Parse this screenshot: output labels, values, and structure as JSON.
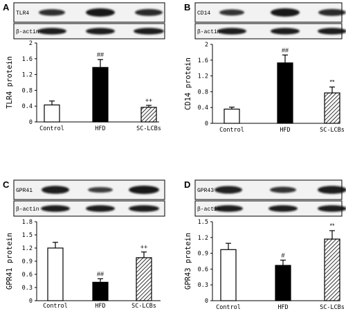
{
  "chart_data": [
    {
      "type": "bar",
      "panel": "A",
      "blot_labels": [
        "TLR4",
        "β-actin"
      ],
      "ylabel": "TLR4 protein",
      "yticks": [
        "0",
        "0.4",
        "0.8",
        "1.2",
        "1.6",
        "2"
      ],
      "ylim": [
        0,
        2
      ],
      "categories": [
        "Control",
        "HFD",
        "SC-LCBs"
      ],
      "values": [
        0.43,
        1.38,
        0.37
      ],
      "errors": [
        0.1,
        0.2,
        0.05
      ],
      "significance": [
        "",
        "##",
        "++"
      ]
    },
    {
      "type": "bar",
      "panel": "B",
      "blot_labels": [
        "CD14",
        "β-actin"
      ],
      "ylabel": "CD14 protein",
      "yticks": [
        "0",
        "0.4",
        "0.8",
        "1.2",
        "1.6",
        "2"
      ],
      "ylim": [
        0,
        2
      ],
      "categories": [
        "Control",
        "HFD",
        "SC-LCBs"
      ],
      "values": [
        0.36,
        1.53,
        0.77
      ],
      "errors": [
        0.05,
        0.2,
        0.15
      ],
      "significance": [
        "",
        "##",
        "**"
      ]
    },
    {
      "type": "bar",
      "panel": "C",
      "blot_labels": [
        "GPR41",
        "β-actin"
      ],
      "ylabel": "GPR41 protein",
      "yticks": [
        "0",
        "0.3",
        "0.6",
        "0.9",
        "1.2",
        "1.5",
        "1.8"
      ],
      "ylim": [
        0,
        1.8
      ],
      "categories": [
        "Control",
        "HFD",
        "SC-LCBs"
      ],
      "values": [
        1.2,
        0.42,
        0.98
      ],
      "errors": [
        0.13,
        0.08,
        0.13
      ],
      "significance": [
        "",
        "##",
        "++"
      ]
    },
    {
      "type": "bar",
      "panel": "D",
      "blot_labels": [
        "GPR43",
        "β-actin"
      ],
      "ylabel": "GPR43 protein",
      "yticks": [
        "0",
        "0.3",
        "0.6",
        "0.9",
        "1.2",
        "1.5"
      ],
      "ylim": [
        0,
        1.5
      ],
      "categories": [
        "Control",
        "HFD",
        "SC-LCBs"
      ],
      "values": [
        0.97,
        0.67,
        1.17
      ],
      "errors": [
        0.12,
        0.1,
        0.16
      ],
      "significance": [
        "",
        "#",
        "**"
      ]
    }
  ],
  "colors": {
    "ink": "#000000",
    "paper": "#ffffff",
    "blot_bg": "#f2f2f2"
  }
}
